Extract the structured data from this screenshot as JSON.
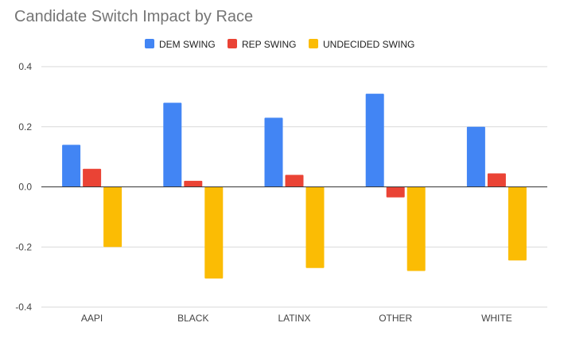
{
  "colors": {
    "dem": "#4285f4",
    "rep": "#ea4335",
    "undecided": "#fbbc04",
    "background": "#ffffff"
  },
  "chart_data": {
    "type": "bar",
    "title": "Candidate Switch Impact by Race",
    "xlabel": "",
    "ylabel": "",
    "categories": [
      "AAPI",
      "BLACK",
      "LATINX",
      "OTHER",
      "WHITE"
    ],
    "series": [
      {
        "name": "DEM SWING",
        "color": "#4285f4",
        "values": [
          0.14,
          0.28,
          0.23,
          0.31,
          0.2
        ]
      },
      {
        "name": "REP SWING",
        "color": "#ea4335",
        "values": [
          0.06,
          0.02,
          0.04,
          -0.035,
          0.045
        ]
      },
      {
        "name": "UNDECIDED SWING",
        "color": "#fbbc04",
        "values": [
          -0.2,
          -0.305,
          -0.27,
          -0.28,
          -0.245
        ]
      }
    ],
    "ylim": [
      -0.4,
      0.4
    ],
    "yticks": [
      0.4,
      0.2,
      0.0,
      -0.2,
      -0.4
    ],
    "ytick_labels": [
      "0.4",
      "0.2",
      "0.0",
      "-0.2",
      "-0.4"
    ],
    "grid": true,
    "legend_position": "top"
  }
}
